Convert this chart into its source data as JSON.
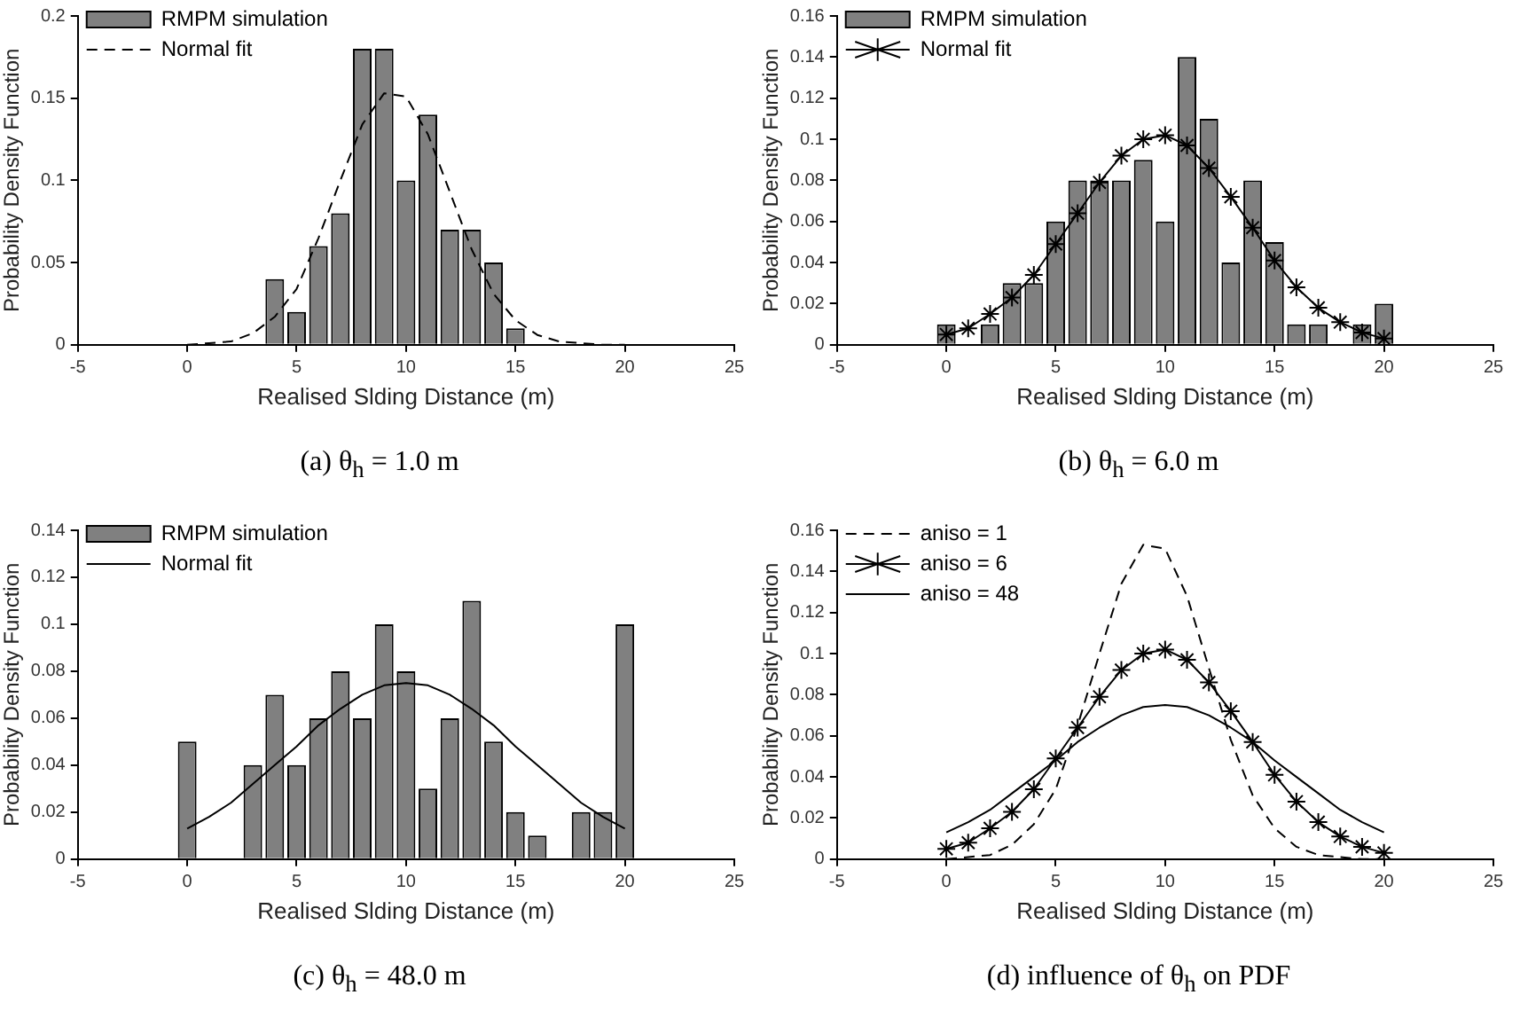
{
  "chart_data": [
    {
      "type": "bar",
      "xlabel": "Realised Slding Distance (m)",
      "ylabel": "Probability Density Function",
      "xlim": [
        -5,
        25
      ],
      "xticks": [
        -5,
        0,
        5,
        10,
        15,
        20,
        25
      ],
      "ylim": [
        0,
        0.2
      ],
      "yticks": [
        0,
        0.05,
        0.1,
        0.15,
        0.2
      ],
      "legend": "top left",
      "annotations": [
        "(a) θ$_{h}$ = 1.0 m"
      ],
      "series": [
        {
          "name": "RMPM simulation",
          "type": "bar",
          "color": "#808080",
          "x": [
            4,
            5,
            6,
            7,
            8,
            9,
            10,
            11,
            12,
            13,
            14,
            15
          ],
          "values": [
            0.04,
            0.02,
            0.06,
            0.08,
            0.18,
            0.18,
            0.1,
            0.14,
            0.07,
            0.07,
            0.05,
            0.01
          ]
        },
        {
          "name": "Normal fit",
          "type": "line",
          "color": "#000000",
          "line_style": "dashed",
          "marker": "none",
          "x": [
            0,
            1,
            2,
            3,
            4,
            5,
            6,
            7,
            8,
            9,
            10,
            11,
            12,
            13,
            14,
            15,
            16,
            17,
            18,
            19,
            20
          ],
          "values": [
            0,
            0.001,
            0.002,
            0.007,
            0.017,
            0.034,
            0.065,
            0.1,
            0.134,
            0.153,
            0.151,
            0.128,
            0.093,
            0.058,
            0.031,
            0.015,
            0.006,
            0.002,
            0.001,
            0,
            0
          ]
        }
      ]
    },
    {
      "type": "bar",
      "xlabel": "Realised Slding Distance (m)",
      "ylabel": "Probability Density Function",
      "xlim": [
        -5,
        25
      ],
      "xticks": [
        -5,
        0,
        5,
        10,
        15,
        20,
        25
      ],
      "ylim": [
        0,
        0.16
      ],
      "yticks": [
        0,
        0.02,
        0.04,
        0.06,
        0.08,
        0.1,
        0.12,
        0.14,
        0.16
      ],
      "legend": "top left",
      "annotations": [
        "(b) θ$_{h}$ = 6.0 m"
      ],
      "series": [
        {
          "name": "RMPM simulation",
          "type": "bar",
          "color": "#808080",
          "x": [
            0,
            2,
            3,
            4,
            5,
            6,
            7,
            8,
            9,
            10,
            11,
            12,
            13,
            14,
            15,
            16,
            17,
            19,
            20
          ],
          "values": [
            0.01,
            0.01,
            0.03,
            0.03,
            0.06,
            0.08,
            0.08,
            0.08,
            0.09,
            0.06,
            0.14,
            0.11,
            0.04,
            0.08,
            0.05,
            0.01,
            0.01,
            0.01,
            0.02
          ]
        },
        {
          "name": "Normal fit",
          "type": "line",
          "color": "#000000",
          "line_style": "solid",
          "marker": "cross",
          "x": [
            0,
            1,
            2,
            3,
            4,
            5,
            6,
            7,
            8,
            9,
            10,
            11,
            12,
            13,
            14,
            15,
            16,
            17,
            18,
            19,
            20
          ],
          "values": [
            0.005,
            0.008,
            0.015,
            0.023,
            0.034,
            0.049,
            0.064,
            0.079,
            0.092,
            0.1,
            0.102,
            0.097,
            0.086,
            0.072,
            0.057,
            0.041,
            0.028,
            0.018,
            0.011,
            0.006,
            0.003
          ]
        }
      ]
    },
    {
      "type": "bar",
      "xlabel": "Realised Slding Distance (m)",
      "ylabel": "Probability Density Function",
      "xlim": [
        -5,
        25
      ],
      "xticks": [
        -5,
        0,
        5,
        10,
        15,
        20,
        25
      ],
      "ylim": [
        0,
        0.14
      ],
      "yticks": [
        0,
        0.02,
        0.04,
        0.06,
        0.08,
        0.1,
        0.12,
        0.14
      ],
      "legend": "top left",
      "annotations": [
        "(c) θ$_{h}$ = 48.0 m"
      ],
      "series": [
        {
          "name": "RMPM simulation",
          "type": "bar",
          "color": "#808080",
          "x": [
            0,
            3,
            4,
            5,
            6,
            7,
            8,
            9,
            10,
            11,
            12,
            13,
            14,
            15,
            16,
            18,
            19,
            20
          ],
          "values": [
            0.05,
            0.04,
            0.07,
            0.04,
            0.06,
            0.08,
            0.06,
            0.1,
            0.08,
            0.03,
            0.06,
            0.11,
            0.05,
            0.02,
            0.01,
            0.02,
            0.02,
            0.1
          ]
        },
        {
          "name": "Normal fit",
          "type": "line",
          "color": "#000000",
          "line_style": "solid",
          "marker": "none",
          "x": [
            0,
            1,
            2,
            3,
            4,
            5,
            6,
            7,
            8,
            9,
            10,
            11,
            12,
            13,
            14,
            15,
            16,
            17,
            18,
            19,
            20
          ],
          "values": [
            0.013,
            0.018,
            0.024,
            0.032,
            0.04,
            0.048,
            0.057,
            0.064,
            0.07,
            0.074,
            0.075,
            0.074,
            0.07,
            0.064,
            0.057,
            0.048,
            0.04,
            0.032,
            0.024,
            0.018,
            0.013
          ]
        }
      ]
    },
    {
      "type": "line",
      "xlabel": "Realised Slding Distance (m)",
      "ylabel": "Probability Density Function",
      "xlim": [
        -5,
        25
      ],
      "xticks": [
        -5,
        0,
        5,
        10,
        15,
        20,
        25
      ],
      "ylim": [
        0,
        0.16
      ],
      "yticks": [
        0,
        0.02,
        0.04,
        0.06,
        0.08,
        0.1,
        0.12,
        0.14,
        0.16
      ],
      "legend": "top left",
      "annotations": [
        "(d) influence of θ$_{h}$ on PDF"
      ],
      "x": [
        0,
        1,
        2,
        3,
        4,
        5,
        6,
        7,
        8,
        9,
        10,
        11,
        12,
        13,
        14,
        15,
        16,
        17,
        18,
        19,
        20
      ],
      "series": [
        {
          "name": "aniso = 1",
          "color": "#000000",
          "line_style": "dashed",
          "marker": "none",
          "values": [
            0,
            0.001,
            0.002,
            0.007,
            0.017,
            0.034,
            0.065,
            0.1,
            0.134,
            0.153,
            0.151,
            0.128,
            0.093,
            0.058,
            0.031,
            0.015,
            0.006,
            0.002,
            0.001,
            0,
            0
          ]
        },
        {
          "name": "aniso = 6",
          "color": "#000000",
          "line_style": "solid",
          "marker": "cross",
          "values": [
            0.005,
            0.008,
            0.015,
            0.023,
            0.034,
            0.049,
            0.064,
            0.079,
            0.092,
            0.1,
            0.102,
            0.097,
            0.086,
            0.072,
            0.057,
            0.041,
            0.028,
            0.018,
            0.011,
            0.006,
            0.003
          ]
        },
        {
          "name": "aniso = 48",
          "color": "#000000",
          "line_style": "solid",
          "marker": "none",
          "values": [
            0.013,
            0.018,
            0.024,
            0.032,
            0.04,
            0.048,
            0.057,
            0.064,
            0.07,
            0.074,
            0.075,
            0.074,
            0.07,
            0.064,
            0.057,
            0.048,
            0.04,
            0.032,
            0.024,
            0.018,
            0.013
          ]
        }
      ]
    }
  ]
}
